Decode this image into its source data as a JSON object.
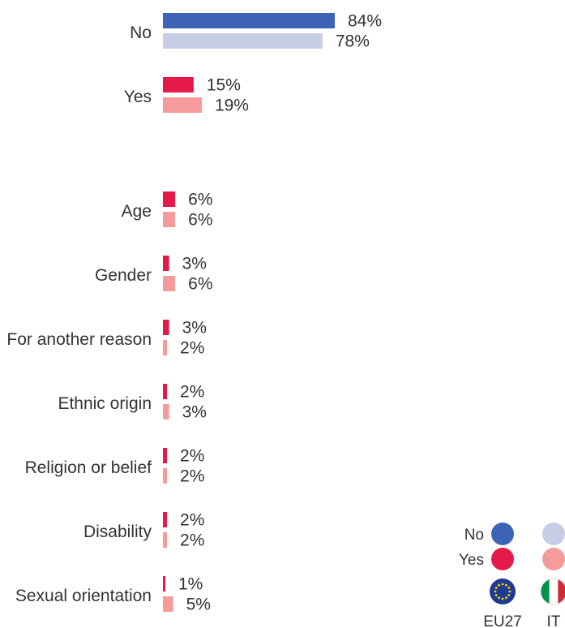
{
  "chart_data": {
    "type": "bar",
    "orientation": "horizontal",
    "series": [
      {
        "name": "EU27",
        "colors": {
          "No": "#3d64b4",
          "Yes": "#e6194b"
        }
      },
      {
        "name": "IT",
        "colors": {
          "No": "#c8cde6",
          "Yes": "#f59b9b"
        }
      }
    ],
    "groups": [
      {
        "label": "No",
        "answer": "No",
        "values": [
          84,
          78
        ],
        "value_labels": [
          "84%",
          "78%"
        ]
      },
      {
        "label": "Yes",
        "answer": "Yes",
        "values": [
          15,
          19
        ],
        "value_labels": [
          "15%",
          "19%"
        ]
      },
      {
        "label": "Age",
        "answer": "Yes",
        "values": [
          6,
          6
        ],
        "value_labels": [
          "6%",
          "6%"
        ]
      },
      {
        "label": "Gender",
        "answer": "Yes",
        "values": [
          3,
          6
        ],
        "value_labels": [
          "3%",
          "6%"
        ]
      },
      {
        "label": "For another reason",
        "answer": "Yes",
        "values": [
          3,
          2
        ],
        "value_labels": [
          "3%",
          "2%"
        ]
      },
      {
        "label": "Ethnic origin",
        "answer": "Yes",
        "values": [
          2,
          3
        ],
        "value_labels": [
          "2%",
          "3%"
        ]
      },
      {
        "label": "Religion or belief",
        "answer": "Yes",
        "values": [
          2,
          2
        ],
        "value_labels": [
          "2%",
          "2%"
        ]
      },
      {
        "label": "Disability",
        "answer": "Yes",
        "values": [
          2,
          2
        ],
        "value_labels": [
          "2%",
          "2%"
        ]
      },
      {
        "label": "Sexual orientation",
        "answer": "Yes",
        "values": [
          1,
          5
        ],
        "value_labels": [
          "1%",
          "5%"
        ]
      }
    ],
    "xlim": [
      0,
      100
    ],
    "grid": false,
    "legend": {
      "placement": "bottom-right",
      "rows": [
        "No",
        "Yes"
      ],
      "columns": [
        "EU27",
        "IT"
      ],
      "column_icons": [
        "eu-flag-icon",
        "italy-flag-icon"
      ]
    }
  }
}
